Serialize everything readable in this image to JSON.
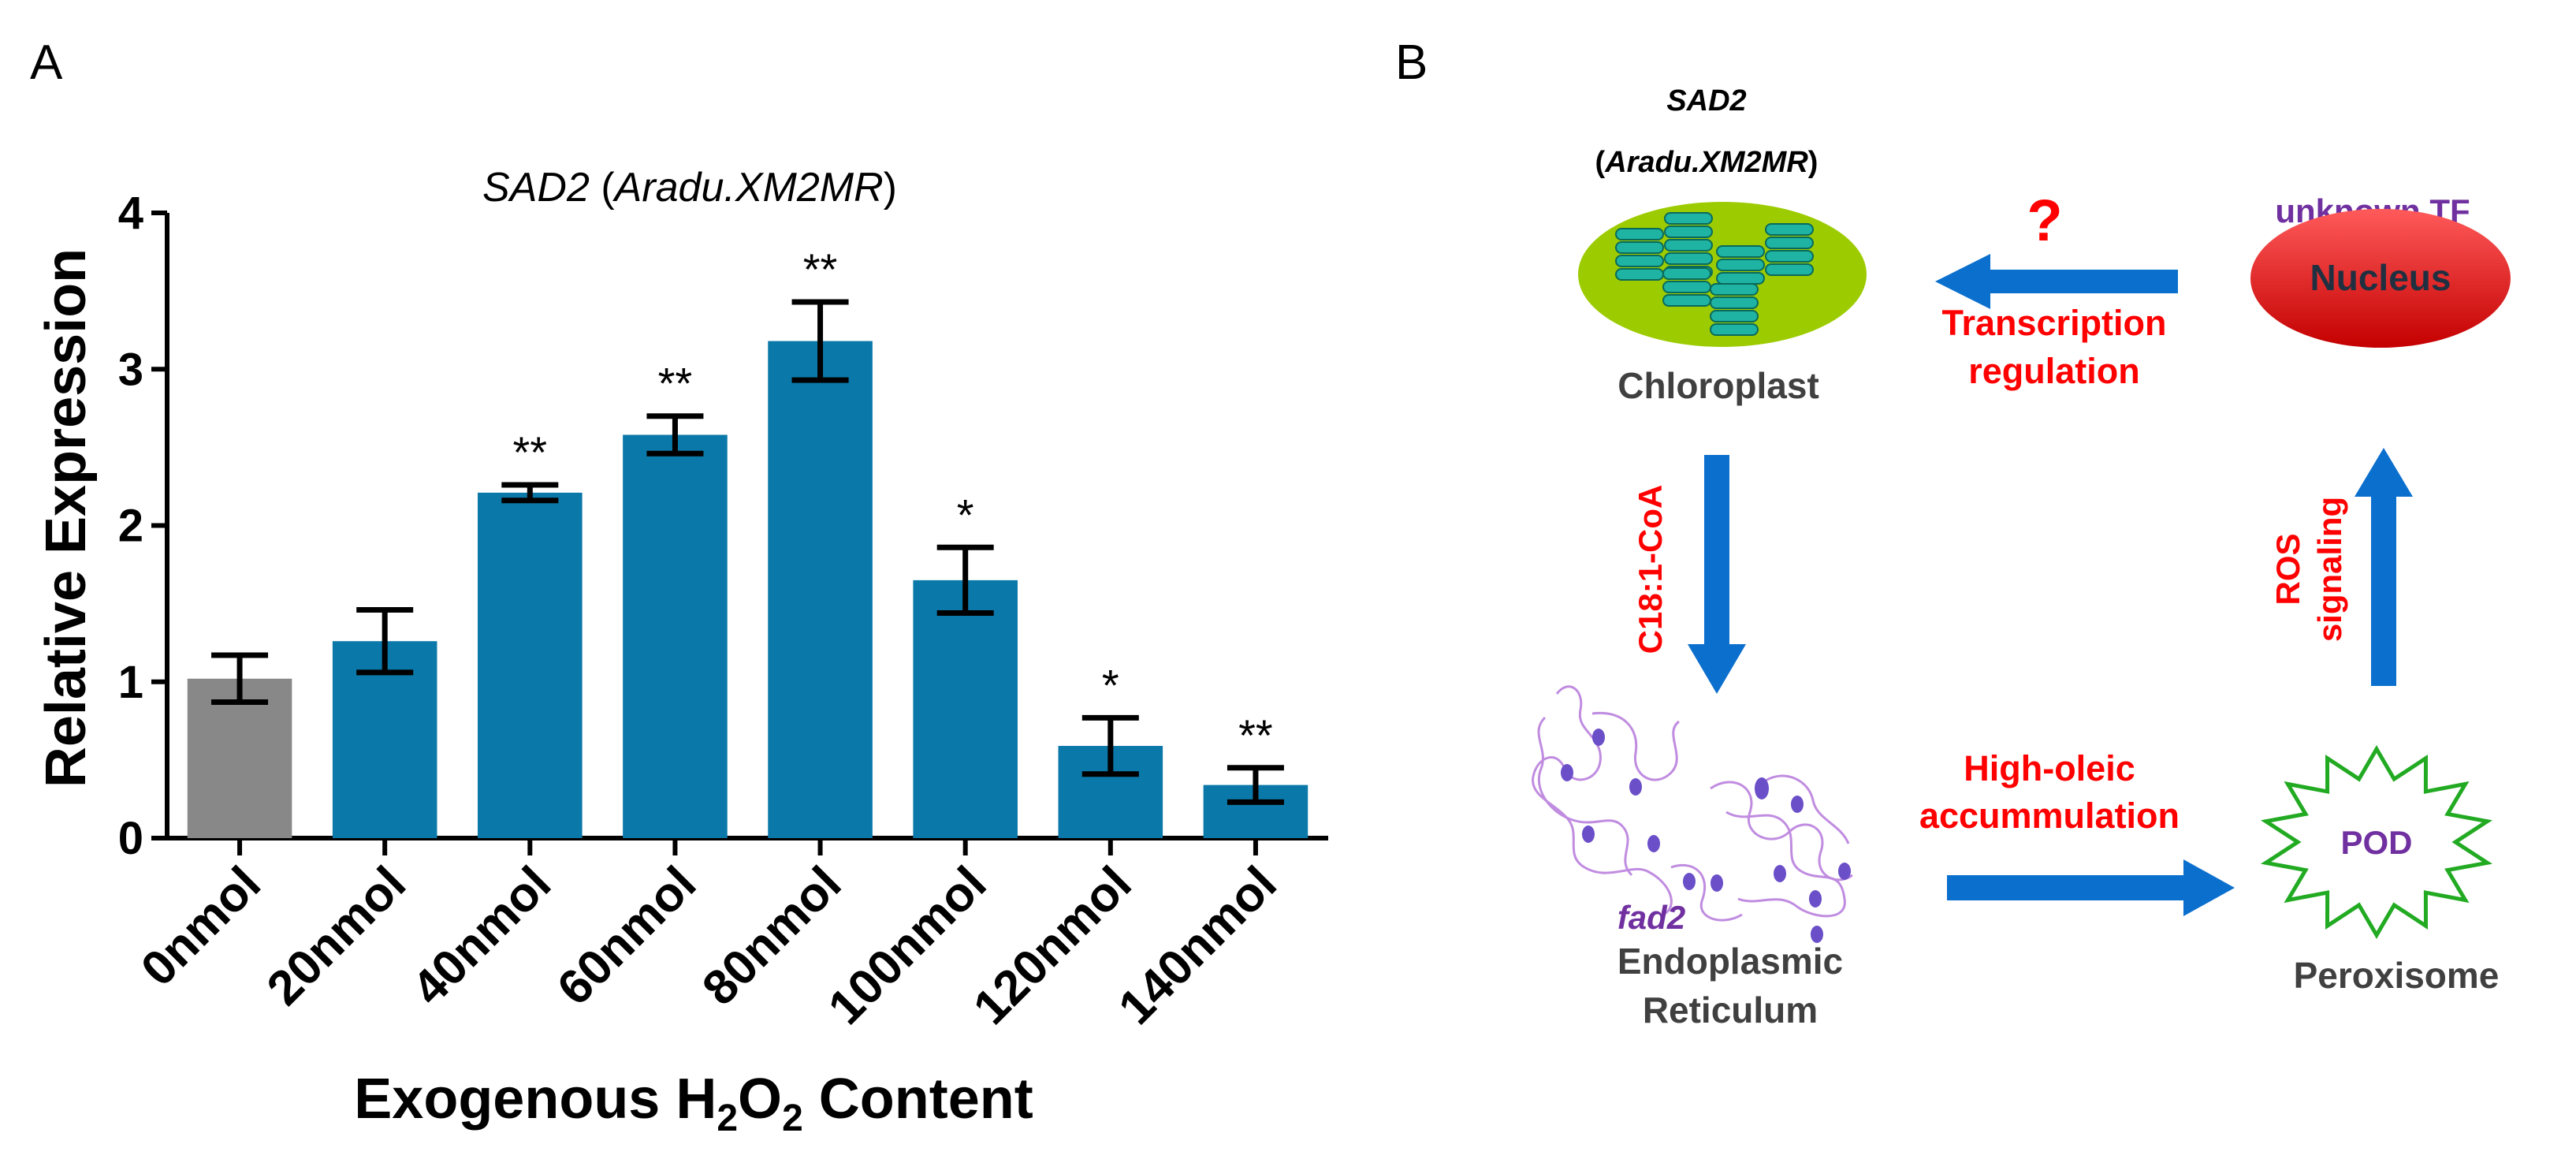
{
  "panel_a": {
    "label": "A",
    "title_gene": "SAD2",
    "title_open": " (",
    "title_locus": "Aradu.XM2MR",
    "title_close": ")",
    "ylabel": "Relative Expression",
    "xlabel_pre": "Exogenous H",
    "xlabel_sub1": "2",
    "xlabel_mid": "O",
    "xlabel_sub2": "2",
    "xlabel_post": " Content"
  },
  "chart_data": {
    "type": "bar",
    "title": "SAD2 (Aradu.XM2MR)",
    "xlabel": "Exogenous H2O2 Content",
    "ylabel": "Relative Expression",
    "ylim": [
      0,
      4
    ],
    "yticks": [
      0,
      1,
      2,
      3,
      4
    ],
    "grid": false,
    "categories": [
      "0nmol",
      "20nmol",
      "40nmol",
      "60nmol",
      "80nmol",
      "100nmol",
      "120nmol",
      "140nmol"
    ],
    "values": [
      1.02,
      1.26,
      2.21,
      2.58,
      3.18,
      1.65,
      0.59,
      0.34
    ],
    "errors": [
      0.15,
      0.2,
      0.05,
      0.12,
      0.25,
      0.21,
      0.18,
      0.11
    ],
    "significance": [
      "",
      "",
      "**",
      "**",
      "**",
      "*",
      "*",
      "**"
    ],
    "colors": [
      "#888888",
      "#0a78a8",
      "#0a78a8",
      "#0a78a8",
      "#0a78a8",
      "#0a78a8",
      "#0a78a8",
      "#0a78a8"
    ]
  },
  "panel_b": {
    "label": "B",
    "gene": "SAD2",
    "locus_open": "(",
    "locus": "Aradu.XM2MR",
    "locus_close": ")",
    "chloroplast": "Chloroplast",
    "question": "?",
    "transcription_line1": "Transcription",
    "transcription_line2": "regulation",
    "unknown_tf": "unknown TF",
    "nucleus": "Nucleus",
    "c18": "C18:1-CoA",
    "ros_line1": "ROS",
    "ros_line2": "signaling",
    "fad2": "fad2",
    "er_line1": "Endoplasmic",
    "er_line2": "Reticulum",
    "high_oleic_line1": "High-oleic",
    "high_oleic_line2": "accummulation",
    "pod": "POD",
    "peroxisome": "Peroxisome",
    "colors": {
      "red": "#ff0000",
      "purple": "#7030a0",
      "blue_arrow": "#0b6fce",
      "chloroplast_fill": "#9ccc00",
      "nucleus_fill": "#e02020",
      "pod_stroke": "#22aa22",
      "dark_text": "#404040"
    }
  }
}
